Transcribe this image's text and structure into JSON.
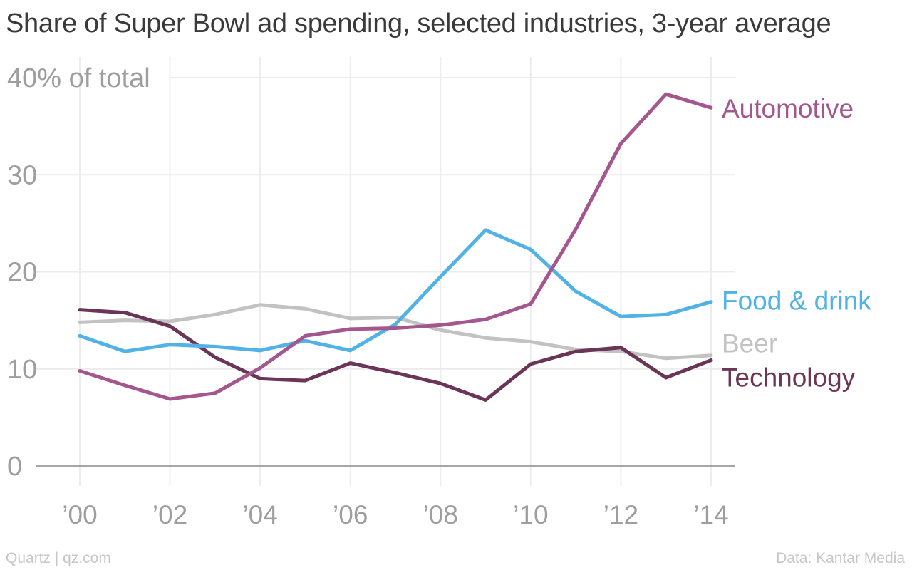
{
  "chart_data": {
    "type": "line",
    "title": "Share of Super Bowl ad spending, selected industries, 3-year average",
    "y_unit_label": "40% of total",
    "x": [
      2000,
      2001,
      2002,
      2003,
      2004,
      2005,
      2006,
      2007,
      2008,
      2009,
      2010,
      2011,
      2012,
      2013,
      2014
    ],
    "x_ticks": [
      2000,
      2002,
      2004,
      2006,
      2008,
      2010,
      2012,
      2014
    ],
    "x_tick_labels": [
      "’00",
      "’02",
      "’04",
      "’06",
      "’08",
      "’10",
      "’12",
      "’14"
    ],
    "y_ticks": [
      0,
      10,
      20,
      30,
      40
    ],
    "y_tick_labels": [
      "0",
      "10",
      "20",
      "30",
      "40% of total"
    ],
    "xlim": [
      2000,
      2014
    ],
    "ylim": [
      0,
      40
    ],
    "grid": true,
    "series": [
      {
        "name": "Automotive",
        "color": "#a4578e",
        "values": [
          9.8,
          8.3,
          6.9,
          7.5,
          10.1,
          13.4,
          14.1,
          14.2,
          14.5,
          15.1,
          16.7,
          24.4,
          33.2,
          38.3,
          36.9
        ]
      },
      {
        "name": "Food & drink",
        "color": "#51b2e5",
        "values": [
          13.4,
          11.8,
          12.5,
          12.3,
          11.9,
          12.9,
          11.9,
          14.6,
          19.5,
          24.3,
          22.3,
          18.0,
          15.4,
          15.6,
          16.9
        ]
      },
      {
        "name": "Beer",
        "color": "#c2c2c2",
        "values": [
          14.8,
          15.0,
          14.9,
          15.6,
          16.6,
          16.2,
          15.2,
          15.3,
          14.0,
          13.2,
          12.8,
          12.0,
          11.8,
          11.1,
          11.4
        ]
      },
      {
        "name": "Technology",
        "color": "#6a3556",
        "values": [
          16.1,
          15.8,
          14.4,
          11.2,
          9.0,
          8.8,
          10.6,
          9.6,
          8.5,
          6.8,
          10.5,
          11.8,
          12.2,
          9.1,
          10.9
        ]
      }
    ]
  },
  "footer": {
    "credit": "Quartz | qz.com",
    "source": "Data: Kantar Media"
  }
}
